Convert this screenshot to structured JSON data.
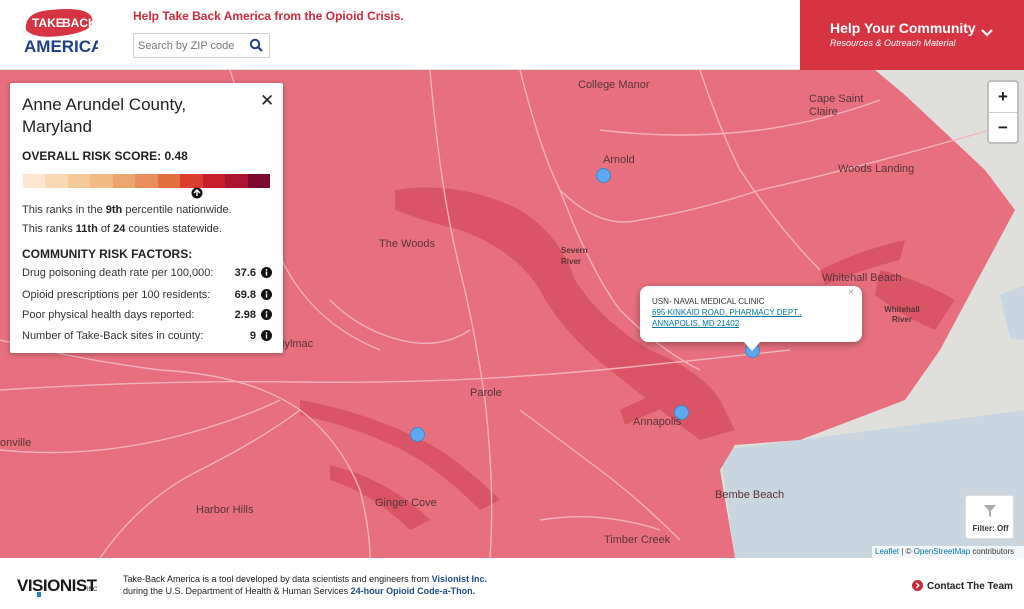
{
  "header": {
    "logo_text_top": "TAKE BACK",
    "logo_text_bottom": "AMERICA",
    "tagline": "Help Take Back America from the Opioid Crisis.",
    "search_placeholder": "Search by ZIP code",
    "help_title": "Help Your Community",
    "help_subtitle": "Resources & Outreach Material"
  },
  "colors": {
    "brand_red": "#d63442",
    "county_fill": "#e8707e",
    "marker": "#5fa7ee"
  },
  "map": {
    "places": {
      "college_manor": "College Manor",
      "cape_saint_claire": "Cape Saint Claire",
      "arnold": "Arnold",
      "woods_landing": "Woods Landing",
      "the_woods": "The Woods",
      "severn_river": "Severn River",
      "whitehall_beach": "Whitehall Beach",
      "whitehall_river": "Whitehall River",
      "parole": "Parole",
      "annapolis": "Annapolis",
      "harbor_hills": "Harbor Hills",
      "ginger_cove": "Ginger Cove",
      "bembe_beach": "Bembe Beach",
      "timber_creek": "Timber Creek",
      "onville": "onville",
      "iylmac": "iylmac"
    },
    "zoom_in": "+",
    "zoom_out": "−",
    "filter_label": "Filter: Off",
    "attribution_leaflet": "Leaflet",
    "attribution_sep": " | © ",
    "attribution_osm": "OpenStreetMap",
    "attribution_tail": " contributors"
  },
  "panel": {
    "county": "Anne Arundel County, Maryland",
    "close": "✕",
    "score_label": "OVERALL RISK SCORE: 0.48",
    "scale_colors": [
      "#fde7d0",
      "#f9d8b4",
      "#f5c899",
      "#f1b983",
      "#eda56e",
      "#e98d5c",
      "#e4703f",
      "#db3e2c",
      "#c81d2a",
      "#aa1430",
      "#7c0a2e"
    ],
    "rank1_pre": "This ranks in the ",
    "rank1_bold": "9th",
    "rank1_post": " percentile nationwide.",
    "rank2_pre": "This ranks ",
    "rank2_bold1": "11th",
    "rank2_mid": " of ",
    "rank2_bold2": "24",
    "rank2_post": " counties statewide.",
    "factors_title": "COMMUNITY RISK FACTORS:",
    "factors": [
      {
        "label": "Drug poisoning death rate per 100,000:",
        "value": "37.6"
      },
      {
        "label": "Opioid prescriptions per 100 residents:",
        "value": "69.8"
      },
      {
        "label": "Poor physical health days reported:",
        "value": "2.98"
      },
      {
        "label": "Number of Take-Back sites in county:",
        "value": "9"
      }
    ]
  },
  "popup": {
    "name": "USN- NAVAL MEDICAL CLINIC",
    "addr1": "695 KINKAID ROAD, PHARMACY DEPT.,",
    "addr2": "ANNAPOLIS, MD 21402",
    "close": "×"
  },
  "footer": {
    "logo_text": "VISIONIST",
    "logo_suffix": "INC",
    "line1_pre": "Take-Back America is a tool developed by data scientists and engineers from ",
    "line1_link": "Visionist Inc.",
    "line2_pre": "during the U.S. Department of Health & Human Services ",
    "line2_link": "24-hour Opioid Code-a-Thon.",
    "contact": "Contact The Team"
  }
}
